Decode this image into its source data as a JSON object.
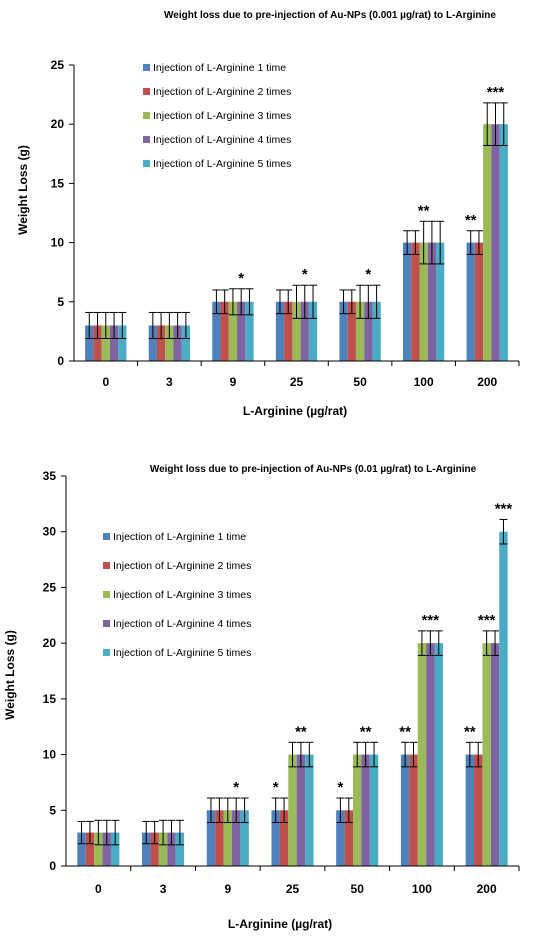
{
  "chart_data": [
    {
      "type": "bar",
      "title": "Weight loss due to pre-injection of Au-NPs (0.001 µg/rat) to L-Arginine",
      "xlabel": "L-Arginine (µg/rat)",
      "ylabel": "Weight Loss  (g)",
      "categories": [
        "0",
        "3",
        "9",
        "25",
        "50",
        "100",
        "200"
      ],
      "ylim": [
        0,
        25
      ],
      "yticks": [
        "0",
        "5",
        "10",
        "15",
        "20",
        "25"
      ],
      "series": [
        {
          "name": "Injection of L-Arginine 1 time",
          "color": "#4F81BD",
          "values": [
            3,
            3,
            5,
            5,
            5,
            10,
            10
          ],
          "errors": [
            1.1,
            1.1,
            1.0,
            1.0,
            1.0,
            1.0,
            1.0
          ]
        },
        {
          "name": "Injection of L-Arginine 2 times",
          "color": "#C0504D",
          "values": [
            3,
            3,
            5,
            5,
            5,
            10,
            10
          ],
          "errors": [
            1.1,
            1.1,
            1.0,
            1.0,
            1.0,
            1.0,
            1.0
          ]
        },
        {
          "name": "Injection of L-Arginine 3 times",
          "color": "#9BBB59",
          "values": [
            3,
            3,
            5,
            5,
            5,
            10,
            20
          ],
          "errors": [
            1.1,
            1.1,
            1.1,
            1.4,
            1.4,
            1.8,
            1.8
          ]
        },
        {
          "name": "Injection of L-Arginine 4 times",
          "color": "#8064A2",
          "values": [
            3,
            3,
            5,
            5,
            5,
            10,
            20
          ],
          "errors": [
            1.1,
            1.1,
            1.1,
            1.4,
            1.4,
            1.8,
            1.8
          ]
        },
        {
          "name": "Injection of L-Arginine 5 times",
          "color": "#4BACC6",
          "values": [
            3,
            3,
            5,
            5,
            5,
            10,
            20
          ],
          "errors": [
            1.1,
            1.1,
            1.1,
            1.4,
            1.4,
            1.8,
            1.8
          ]
        }
      ],
      "annotations": [
        {
          "category": "9",
          "series": 3,
          "text": "*"
        },
        {
          "category": "25",
          "series": 3,
          "text": "*"
        },
        {
          "category": "50",
          "series": 3,
          "text": "*"
        },
        {
          "category": "100",
          "series": 2,
          "text": "**"
        },
        {
          "category": "200",
          "series": 0,
          "text": "**"
        },
        {
          "category": "200",
          "series": 3,
          "text": "***"
        }
      ],
      "grid": false,
      "legend_position": "top-left"
    },
    {
      "type": "bar",
      "title": "Weight loss due to pre-injection of Au-NPs (0.01 µg/rat) to L-Arginine",
      "xlabel": "L-Arginine (µg/rat)",
      "ylabel": "Weight Loss  (g)",
      "categories": [
        "0",
        "3",
        "9",
        "25",
        "50",
        "100",
        "200"
      ],
      "ylim": [
        0,
        35
      ],
      "yticks": [
        "0",
        "5",
        "10",
        "15",
        "20",
        "25",
        "30",
        "35"
      ],
      "series": [
        {
          "name": "Injection of L-Arginine 1 time",
          "color": "#4F81BD",
          "values": [
            3,
            3,
            5,
            5,
            5,
            10,
            10
          ],
          "errors": [
            1.0,
            1.0,
            1.1,
            1.1,
            1.1,
            1.1,
            1.1
          ]
        },
        {
          "name": "Injection of L-Arginine 2 times",
          "color": "#C0504D",
          "values": [
            3,
            3,
            5,
            5,
            5,
            10,
            10
          ],
          "errors": [
            1.0,
            1.0,
            1.1,
            1.1,
            1.1,
            1.1,
            1.1
          ]
        },
        {
          "name": "Injection of L-Arginine 3 times",
          "color": "#9BBB59",
          "values": [
            3,
            3,
            5,
            10,
            10,
            20,
            20
          ],
          "errors": [
            1.1,
            1.1,
            1.1,
            1.1,
            1.1,
            1.1,
            1.1
          ]
        },
        {
          "name": "Injection of L-Arginine 4 times",
          "color": "#8064A2",
          "values": [
            3,
            3,
            5,
            10,
            10,
            20,
            20
          ],
          "errors": [
            1.1,
            1.1,
            1.1,
            1.1,
            1.1,
            1.1,
            1.1
          ]
        },
        {
          "name": "Injection of L-Arginine 5 times",
          "color": "#4BACC6",
          "values": [
            3,
            3,
            5,
            10,
            10,
            20,
            30
          ],
          "errors": [
            1.1,
            1.1,
            1.1,
            1.1,
            1.1,
            1.1,
            1.1
          ]
        }
      ],
      "annotations": [
        {
          "category": "9",
          "series": 3,
          "text": "*"
        },
        {
          "category": "25",
          "series": 0,
          "text": "*"
        },
        {
          "category": "25",
          "series": 3,
          "text": "**"
        },
        {
          "category": "50",
          "series": 0,
          "text": "*"
        },
        {
          "category": "50",
          "series": 3,
          "text": "**"
        },
        {
          "category": "100",
          "series": 0,
          "text": "**"
        },
        {
          "category": "100",
          "series": 3,
          "text": "***"
        },
        {
          "category": "200",
          "series": 0,
          "text": "**"
        },
        {
          "category": "200",
          "series": 2,
          "text": "***"
        },
        {
          "category": "200",
          "series": 4,
          "text": "***"
        }
      ],
      "grid": false,
      "legend_position": "top-left"
    }
  ]
}
